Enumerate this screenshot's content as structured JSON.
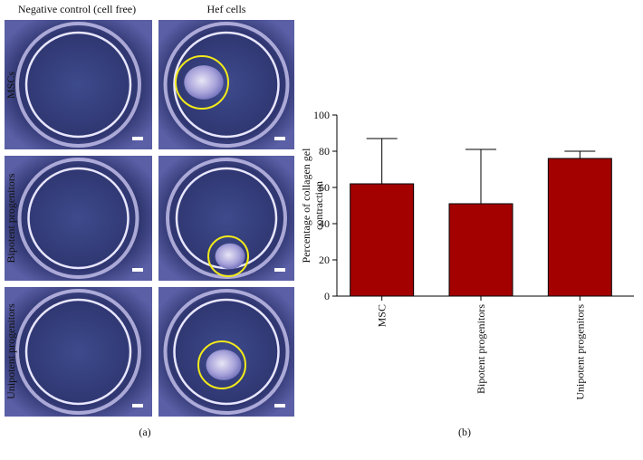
{
  "panel_a": {
    "column_headers": [
      "Negative control (cell free)",
      "Hef cells"
    ],
    "row_labels": [
      "MSCs",
      "Bipotent progenitors",
      "Unipotent progenitors"
    ],
    "caption": "(a)"
  },
  "chart_data": {
    "type": "bar",
    "caption": "(b)",
    "y_label": [
      "Percentage of collagen gel",
      "contraction"
    ],
    "categories": [
      "MSC",
      "Bipotent progenitors",
      "Unipotent progenitors"
    ],
    "values": [
      62,
      51,
      76
    ],
    "errors": [
      25,
      30,
      4
    ],
    "color": "#a30000",
    "ylim": [
      0,
      100
    ],
    "yticks": [
      0,
      20,
      40,
      60,
      80,
      100
    ]
  }
}
